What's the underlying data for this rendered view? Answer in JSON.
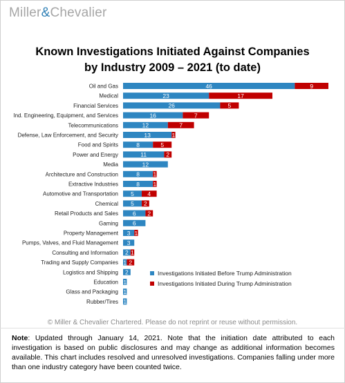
{
  "logo": {
    "part1": "Miller",
    "amp": "&",
    "part2": "Chevalier"
  },
  "title_line1": "Known Investigations Initiated Against Companies",
  "title_line2": "by Industry 2009 – 2021 (to date)",
  "copyright": "© Miller & Chevalier Chartered. Please do not reprint or reuse without permission.",
  "note": {
    "label": "Note",
    "text": ": Updated through January 14, 2021. Note that the initiation date attributed to each investigation is based on public disclosures and may change as additional information becomes available. This chart includes resolved and unresolved investigations. Companies falling under more than one industry category have been counted twice."
  },
  "colors": {
    "before": "#2e86c1",
    "during": "#c00000"
  },
  "chart_data": {
    "type": "bar",
    "orientation": "horizontal",
    "stacked": true,
    "title": "Known Investigations Initiated Against Companies by Industry 2009 – 2021 (to date)",
    "legend_position": "bottom-right",
    "categories": [
      "Oil and Gas",
      "Medical",
      "Financial Services",
      "Ind. Engineering, Equipment, and Services",
      "Telecommunications",
      "Defense, Law Enforcement, and Security",
      "Food and Spirits",
      "Power and Energy",
      "Media",
      "Architecture and Construction",
      "Extractive Industries",
      "Automotive and Transportation",
      "Chemical",
      "Retail Products and Sales",
      "Gaming",
      "Property Management",
      "Pumps, Valves, and Fluid Management",
      "Consulting and Information",
      "Trading and Supply Companies",
      "Logistics and Shipping",
      "Education",
      "Glass and Packaging",
      "Rubber/Tires"
    ],
    "series": [
      {
        "name": "Investigations Initiated Before Trump Administration",
        "values": [
          46,
          23,
          26,
          16,
          12,
          13,
          8,
          11,
          12,
          8,
          8,
          5,
          5,
          6,
          6,
          3,
          3,
          2,
          1,
          2,
          1,
          1,
          1
        ]
      },
      {
        "name": "Investigations Initiated During Trump Administration",
        "values": [
          9,
          17,
          5,
          7,
          7,
          1,
          5,
          2,
          0,
          1,
          1,
          4,
          2,
          2,
          0,
          1,
          0,
          1,
          2,
          0,
          0,
          0,
          0
        ]
      }
    ]
  }
}
